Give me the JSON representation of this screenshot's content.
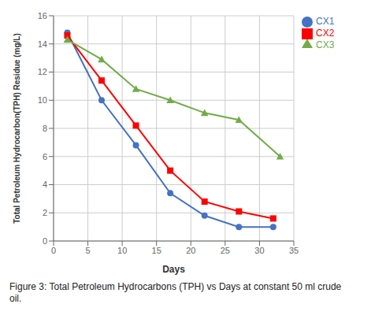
{
  "chart_data": {
    "type": "line",
    "xlabel": "Days",
    "ylabel": "Total Petroleum Hydrocarbon(TPH) Residue (mg/L)",
    "xlim": [
      0,
      35
    ],
    "ylim": [
      0,
      16
    ],
    "xticks": [
      0,
      5,
      10,
      15,
      20,
      25,
      30,
      35
    ],
    "yticks": [
      0,
      2,
      4,
      6,
      8,
      10,
      12,
      14,
      16
    ],
    "grid": true,
    "legend": "upper right",
    "annotations": [
      "Figure 3: Total Petroleum Hydrocarbons (TPH) vs Days at constant 50 ml crude\noil."
    ],
    "series": [
      {
        "name": "CX1",
        "color": "#4472C4",
        "marker": "circle",
        "x": [
          2,
          7,
          12,
          17,
          22,
          27,
          32
        ],
        "values": [
          14.8,
          10.0,
          6.8,
          3.4,
          1.8,
          1.0,
          1.0
        ]
      },
      {
        "name": "CX2",
        "color": "#FF0000",
        "marker": "square",
        "x": [
          2,
          7,
          12,
          17,
          22,
          27,
          32
        ],
        "values": [
          14.6,
          11.4,
          8.2,
          5.0,
          2.8,
          2.1,
          1.6
        ]
      },
      {
        "name": "CX3",
        "color": "#70AD47",
        "marker": "triangle",
        "x": [
          2,
          7,
          12,
          17,
          22,
          27,
          33
        ],
        "values": [
          14.3,
          12.9,
          10.8,
          10.0,
          9.1,
          8.6,
          6.0
        ]
      }
    ]
  }
}
